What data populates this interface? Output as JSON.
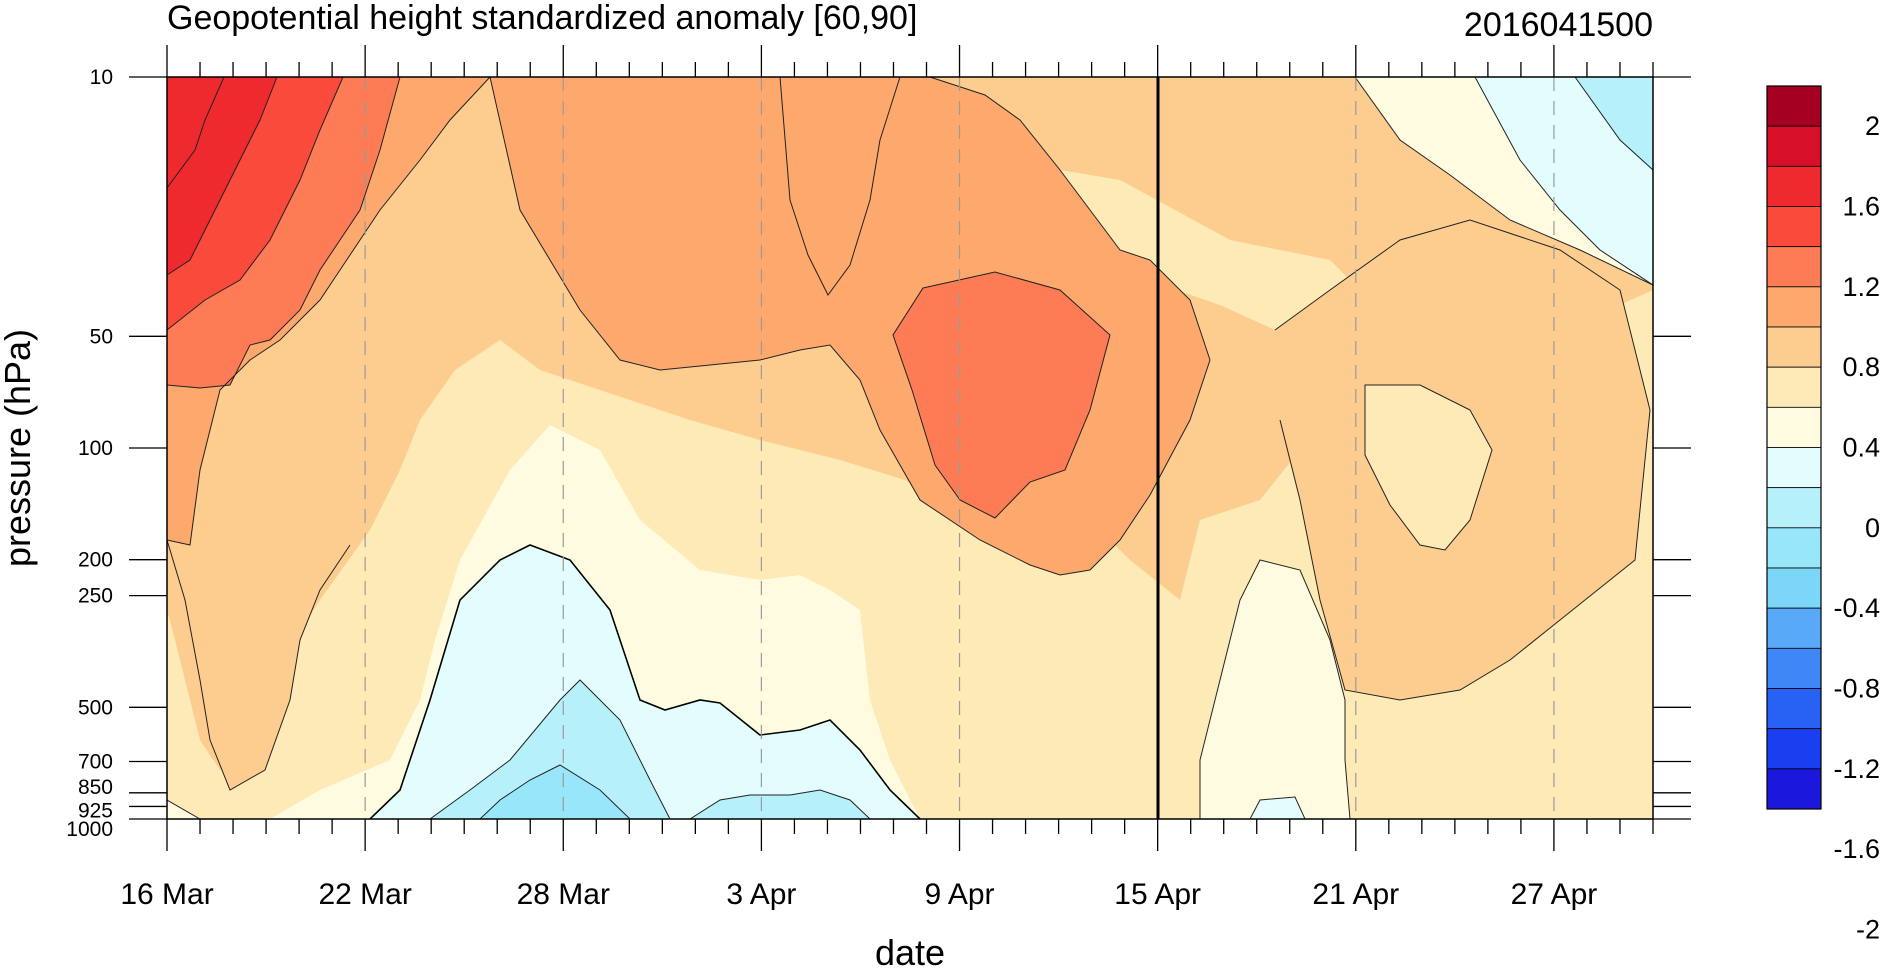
{
  "chart_data": {
    "type": "contour",
    "title": "Geopotential height standardized anomaly [60,90]",
    "date_stamp": "2016041500",
    "xlabel": "date",
    "ylabel": "pressure (hPa)",
    "x_ticks": [
      "16 Mar",
      "22 Mar",
      "28 Mar",
      "3 Apr",
      "9 Apr",
      "15 Apr",
      "21 Apr",
      "27 Apr"
    ],
    "x_range_days_from_16_Mar": [
      0,
      45
    ],
    "y_axis": "log-pressure, reversed (10 at top, 1000 at bottom)",
    "y_ticks": [
      "10",
      "50",
      "100",
      "200",
      "250",
      "500",
      "700",
      "850",
      "925",
      "1000"
    ],
    "ylim": [
      1000,
      10
    ],
    "grid": "dashed vertical lines at labeled dates",
    "marked_date": "15 Apr",
    "colorbar": {
      "labels": [
        "2",
        "1.6",
        "1.2",
        "0.8",
        "0.4",
        "0",
        "-0.4",
        "-0.8",
        "-1.2",
        "-1.6",
        "-2"
      ],
      "colors": [
        "#a50021",
        "#d7102a",
        "#ef2a2e",
        "#fa4a3c",
        "#fd7b55",
        "#fda96e",
        "#fdcd8f",
        "#fdeab6",
        "#fefbe0",
        "#e3fcfe",
        "#b6f1fb",
        "#98e6fa",
        "#7bd6f8",
        "#58aaf8",
        "#3f86f6",
        "#2862f4",
        "#1a3ff1",
        "#1b18dc"
      ],
      "placement": "right"
    },
    "approx_values": {
      "description": "approximate anomaly values (contour interval 0.2)",
      "high_top_left": 1.6,
      "warm_core_9_Apr_50_to_150hPa": 1.2,
      "cold_lower_levels_28_Mar": -0.6,
      "cold_top_right_27_Apr": -0.2
    }
  }
}
